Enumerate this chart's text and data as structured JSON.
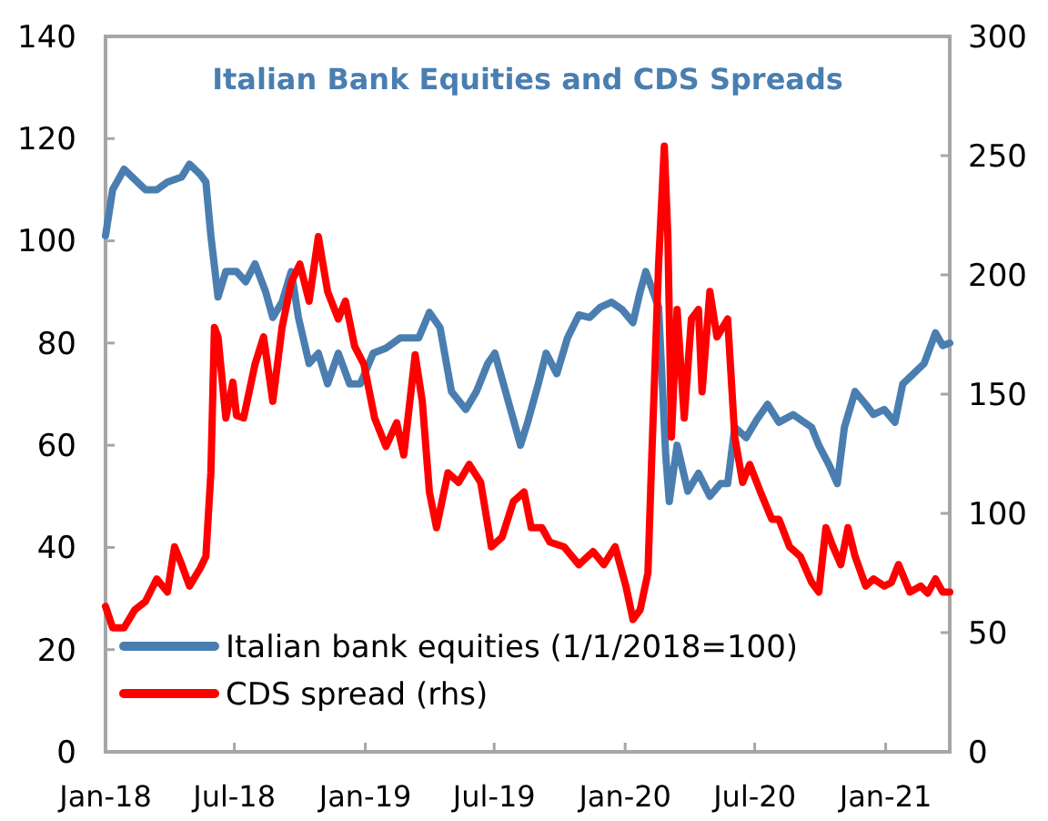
{
  "chart_data": {
    "type": "line",
    "title": "Italian Bank Equities and CDS Spreads",
    "xlim": [
      "2018-01-01",
      "2021-04-01"
    ],
    "xticks": [
      {
        "value": "2018-01-01",
        "label": "Jan-18"
      },
      {
        "value": "2018-07-01",
        "label": "Jul-18"
      },
      {
        "value": "2019-01-01",
        "label": "Jan-19"
      },
      {
        "value": "2019-07-01",
        "label": "Jul-19"
      },
      {
        "value": "2020-01-01",
        "label": "Jan-20"
      },
      {
        "value": "2020-07-01",
        "label": "Jul-20"
      },
      {
        "value": "2021-01-01",
        "label": "Jan-21"
      }
    ],
    "ylim": [
      0,
      140
    ],
    "yticks": [
      0,
      20,
      40,
      60,
      80,
      100,
      120,
      140
    ],
    "y2lim": [
      0,
      300
    ],
    "y2ticks": [
      0,
      50,
      100,
      150,
      200,
      250,
      300
    ],
    "grid": false,
    "legend": "bottom left",
    "line_style": "solid",
    "series": [
      {
        "name": "Italian bank equities (1/1/2018=100)",
        "color": "#4a7eb0",
        "x": [
          "2018-01-01",
          "2018-01-11",
          "2018-01-27",
          "2018-02-11",
          "2018-02-26",
          "2018-03-14",
          "2018-03-29",
          "2018-04-18",
          "2018-04-29",
          "2018-05-14",
          "2018-05-22",
          "2018-05-29",
          "2018-06-08",
          "2018-06-19",
          "2018-07-04",
          "2018-07-17",
          "2018-07-30",
          "2018-08-14",
          "2018-08-24",
          "2018-09-06",
          "2018-09-19",
          "2018-09-29",
          "2018-10-14",
          "2018-10-27",
          "2018-11-09",
          "2018-11-24",
          "2018-12-10",
          "2018-12-25",
          "2019-01-12",
          "2019-01-30",
          "2019-02-19",
          "2019-03-17",
          "2019-04-01",
          "2019-04-16",
          "2019-05-02",
          "2019-05-22",
          "2019-06-06",
          "2019-06-22",
          "2019-07-02",
          "2019-07-22",
          "2019-08-07",
          "2019-08-17",
          "2019-09-01",
          "2019-09-12",
          "2019-09-27",
          "2019-10-12",
          "2019-10-28",
          "2019-11-12",
          "2019-11-27",
          "2019-12-13",
          "2019-12-28",
          "2020-01-12",
          "2020-01-22",
          "2020-01-30",
          "2020-02-17",
          "2020-02-27",
          "2020-03-03",
          "2020-03-14",
          "2020-03-29",
          "2020-04-13",
          "2020-04-29",
          "2020-05-14",
          "2020-05-24",
          "2020-06-03",
          "2020-06-19",
          "2020-07-04",
          "2020-07-19",
          "2020-08-04",
          "2020-08-24",
          "2020-09-19",
          "2020-09-29",
          "2020-10-14",
          "2020-10-25",
          "2020-11-04",
          "2020-11-19",
          "2020-12-04",
          "2020-12-15",
          "2020-12-30",
          "2021-01-14",
          "2021-01-25",
          "2021-02-09",
          "2021-02-24",
          "2021-03-12",
          "2021-03-22",
          "2021-04-01"
        ],
        "values": [
          101,
          110,
          114,
          112,
          110,
          110,
          111.5,
          112.5,
          115,
          113,
          111.5,
          101,
          89,
          94,
          94,
          92,
          95.5,
          90,
          85,
          88,
          94,
          85,
          76,
          78,
          72,
          78,
          72,
          72,
          78,
          79,
          81,
          81,
          86,
          83,
          70.5,
          67,
          70.5,
          76,
          78,
          68,
          60,
          64.5,
          72,
          78,
          74,
          81,
          85.5,
          85,
          87,
          88,
          86.5,
          84,
          90,
          94,
          87,
          58,
          49,
          60,
          51,
          54.5,
          50,
          52.5,
          52.5,
          63.5,
          61.5,
          65,
          68,
          64.5,
          66,
          63.5,
          60,
          56,
          52.5,
          63.5,
          70.5,
          68,
          66,
          67,
          64.5,
          72,
          74,
          76,
          82,
          79.5,
          80
        ]
      },
      {
        "name": "CDS spread (rhs)",
        "color": "#ff0000",
        "axis": "y2",
        "x": [
          "2018-01-01",
          "2018-01-11",
          "2018-01-27",
          "2018-02-11",
          "2018-02-26",
          "2018-03-14",
          "2018-03-29",
          "2018-04-08",
          "2018-04-18",
          "2018-04-29",
          "2018-05-14",
          "2018-05-22",
          "2018-05-29",
          "2018-06-03",
          "2018-06-08",
          "2018-06-19",
          "2018-06-29",
          "2018-07-04",
          "2018-07-14",
          "2018-07-30",
          "2018-08-11",
          "2018-08-24",
          "2018-09-06",
          "2018-09-19",
          "2018-10-01",
          "2018-10-14",
          "2018-10-27",
          "2018-11-09",
          "2018-11-24",
          "2018-12-04",
          "2018-12-17",
          "2018-12-30",
          "2019-01-14",
          "2019-01-30",
          "2019-02-14",
          "2019-02-24",
          "2019-03-12",
          "2019-03-22",
          "2019-04-01",
          "2019-04-11",
          "2019-04-27",
          "2019-05-12",
          "2019-05-27",
          "2019-06-12",
          "2019-06-27",
          "2019-07-12",
          "2019-07-28",
          "2019-08-12",
          "2019-08-22",
          "2019-09-06",
          "2019-09-17",
          "2019-10-07",
          "2019-10-28",
          "2019-11-17",
          "2019-12-02",
          "2019-12-18",
          "2020-01-02",
          "2020-01-12",
          "2020-01-22",
          "2020-02-02",
          "2020-02-07",
          "2020-02-17",
          "2020-02-25",
          "2020-03-01",
          "2020-03-06",
          "2020-03-14",
          "2020-03-24",
          "2020-04-03",
          "2020-04-13",
          "2020-04-18",
          "2020-04-29",
          "2020-05-09",
          "2020-05-24",
          "2020-06-03",
          "2020-06-14",
          "2020-06-24",
          "2020-07-09",
          "2020-07-25",
          "2020-08-04",
          "2020-08-19",
          "2020-09-03",
          "2020-09-19",
          "2020-09-29",
          "2020-10-09",
          "2020-10-19",
          "2020-10-30",
          "2020-11-09",
          "2020-11-19",
          "2020-12-04",
          "2020-12-15",
          "2020-12-30",
          "2021-01-09",
          "2021-01-19",
          "2021-02-04",
          "2021-02-19",
          "2021-03-01",
          "2021-03-12",
          "2021-03-22",
          "2021-04-01"
        ],
        "values": [
          61,
          52,
          52,
          59.5,
          63,
          72.5,
          67,
          86,
          78.5,
          69.5,
          77,
          82,
          117,
          178,
          174,
          140,
          155,
          141,
          140,
          162.5,
          174,
          147,
          178,
          197,
          204.5,
          189,
          216,
          193,
          181.5,
          189,
          170,
          162.5,
          140,
          128,
          138,
          124.5,
          166.5,
          147,
          109,
          94,
          117,
          113,
          120.5,
          113,
          86,
          90,
          105,
          109,
          94,
          94,
          88,
          86,
          78.5,
          84,
          78.5,
          86,
          69.5,
          55.5,
          59.5,
          75,
          120.5,
          204.5,
          254,
          216,
          132,
          185.5,
          140,
          181.5,
          185.5,
          151,
          193,
          174,
          181.5,
          132,
          113,
          120.5,
          109,
          97.5,
          97.5,
          86,
          82,
          71,
          67,
          94,
          86,
          78.5,
          94,
          82,
          69.5,
          72.5,
          69.5,
          71,
          78.5,
          67,
          69.5,
          66.5,
          72.5,
          67,
          67
        ]
      }
    ]
  }
}
